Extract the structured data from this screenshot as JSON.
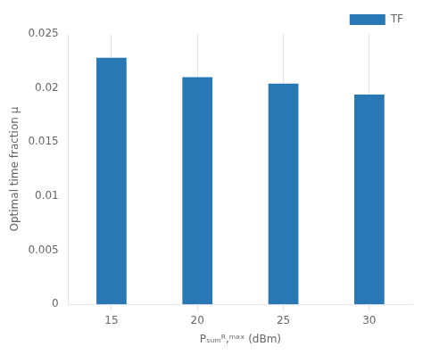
{
  "chart_data": {
    "type": "bar",
    "categories": [
      "15",
      "20",
      "25",
      "30"
    ],
    "series": [
      {
        "name": "TF",
        "color": "#2878b5",
        "values": [
          0.0228,
          0.021,
          0.0204,
          0.0194
        ]
      }
    ],
    "x_label": "Pₛᵤₘᴿ,ᵐᵃˣ (dBm)",
    "y_label": "Optimal time fraction μ",
    "ylim": [
      0,
      0.025
    ],
    "yticks": [
      0,
      0.005,
      0.01,
      0.015,
      0.02,
      0.025
    ],
    "grid": "x",
    "legend": "upper right"
  }
}
